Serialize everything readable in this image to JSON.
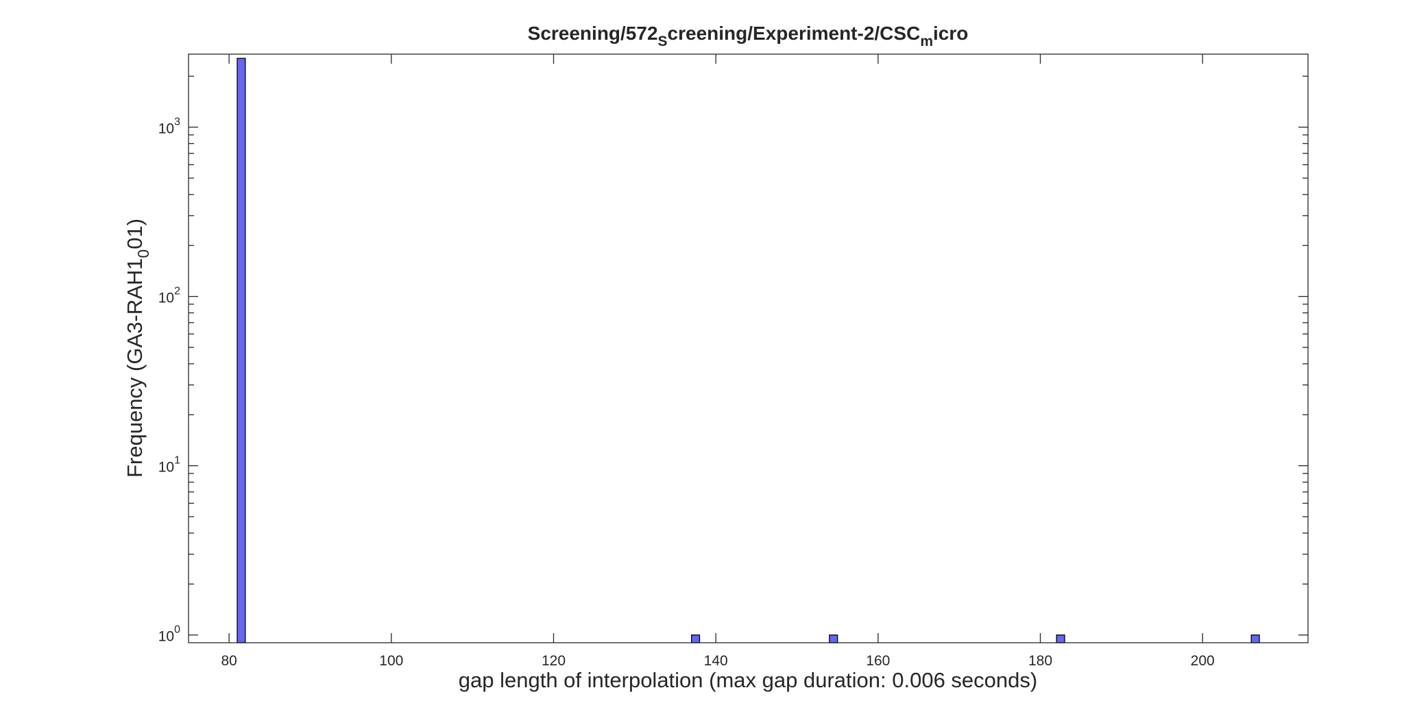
{
  "chart_data": {
    "type": "bar",
    "title": {
      "parts": [
        {
          "text": "Screening/572",
          "sub": false
        },
        {
          "text": "S",
          "sub": true
        },
        {
          "text": "creening/Experiment-2/CSC",
          "sub": false
        },
        {
          "text": "m",
          "sub": true
        },
        {
          "text": "icro",
          "sub": false
        }
      ]
    },
    "xlabel": "gap length of interpolation (max gap duration: 0.006 seconds)",
    "ylabel": {
      "parts": [
        {
          "text": "Frequency (GA3-RAH1",
          "sub": false
        },
        {
          "text": "0",
          "sub": true
        },
        {
          "text": "01)",
          "sub": false
        }
      ]
    },
    "x_ticks": [
      80,
      100,
      120,
      140,
      160,
      180,
      200
    ],
    "y_ticks": [
      {
        "value": 1,
        "base": "10",
        "exp": "0"
      },
      {
        "value": 10,
        "base": "10",
        "exp": "1"
      },
      {
        "value": 100,
        "base": "10",
        "exp": "2"
      },
      {
        "value": 1000,
        "base": "10",
        "exp": "3"
      }
    ],
    "xlim": [
      75,
      213
    ],
    "ylim": [
      0.9,
      2700
    ],
    "yscale": "log",
    "bar_width": 1,
    "bar_color": "#6666f0",
    "bars": [
      {
        "x": 81.5,
        "value": 2550
      },
      {
        "x": 137.5,
        "value": 1
      },
      {
        "x": 154.5,
        "value": 1
      },
      {
        "x": 182.5,
        "value": 1
      },
      {
        "x": 206.5,
        "value": 1
      }
    ],
    "grid": false,
    "box": true
  }
}
